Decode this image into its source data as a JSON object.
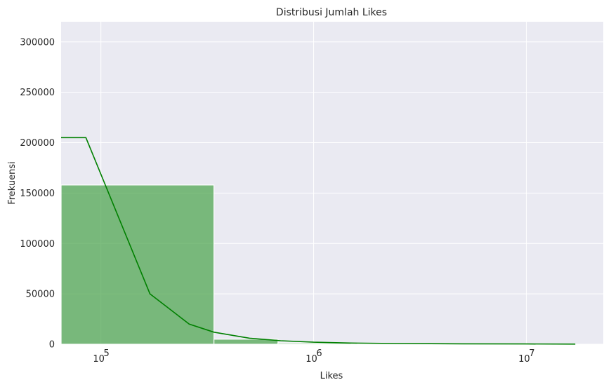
{
  "chart_data": {
    "type": "bar",
    "title": "Distribusi Jumlah Likes",
    "xlabel": "Likes",
    "ylabel": "Frekuensi",
    "x_scale": "log",
    "xlim": [
      65000,
      23000000
    ],
    "ylim": [
      0,
      320000
    ],
    "y_ticks": [
      0,
      50000,
      100000,
      150000,
      200000,
      250000,
      300000
    ],
    "x_ticks": [
      {
        "value": 100000,
        "base": "10",
        "exp": "5"
      },
      {
        "value": 1000000,
        "base": "10",
        "exp": "6"
      },
      {
        "value": 10000000,
        "base": "10",
        "exp": "7"
      }
    ],
    "grid": true,
    "histogram": {
      "bins": [
        {
          "x0": 65000,
          "x1": 340000,
          "count": 158000
        },
        {
          "x0": 340000,
          "x1": 680000,
          "count": 5000
        },
        {
          "x0": 680000,
          "x1": 1500000,
          "count": 1200
        },
        {
          "x0": 1500000,
          "x1": 4000000,
          "count": 400
        },
        {
          "x0": 4000000,
          "x1": 17000000,
          "count": 150
        }
      ],
      "color": "#4CA54C"
    },
    "series": [
      {
        "type": "line",
        "color": "#008000",
        "x": [
          65000,
          85000,
          170000,
          260000,
          340000,
          500000,
          700000,
          1000000,
          1500000,
          2500000,
          5000000,
          10000000,
          17000000
        ],
        "y": [
          205000,
          205000,
          50000,
          20000,
          12000,
          6000,
          3500,
          2000,
          1200,
          700,
          400,
          250,
          150
        ]
      }
    ]
  }
}
